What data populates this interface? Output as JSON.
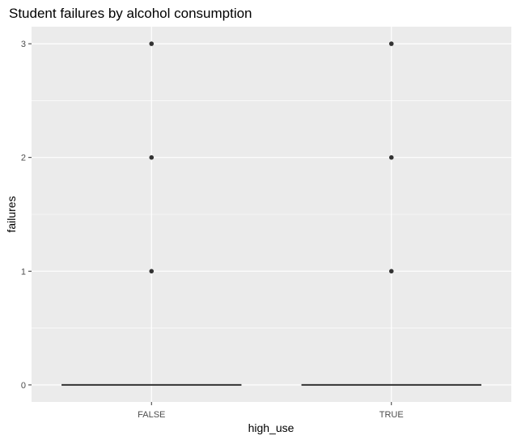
{
  "chart_data": {
    "type": "boxplot",
    "title": "Student failures by alcohol consumption",
    "xlabel": "high_use",
    "ylabel": "failures",
    "categories": [
      "FALSE",
      "TRUE"
    ],
    "ylim": [
      -0.15,
      3.15
    ],
    "yticks": [
      0,
      1,
      2,
      3
    ],
    "grid": true,
    "boxes": [
      {
        "category": "FALSE",
        "min": 0,
        "q1": 0,
        "median": 0,
        "q3": 0,
        "max": 0,
        "outliers": [
          1,
          2,
          3
        ]
      },
      {
        "category": "TRUE",
        "min": 0,
        "q1": 0,
        "median": 0,
        "q3": 0,
        "max": 0,
        "outliers": [
          1,
          2,
          3
        ]
      }
    ],
    "colors": {
      "panel": "#ebebeb",
      "grid": "#ffffff",
      "box": "#333333",
      "point": "#333333"
    }
  }
}
